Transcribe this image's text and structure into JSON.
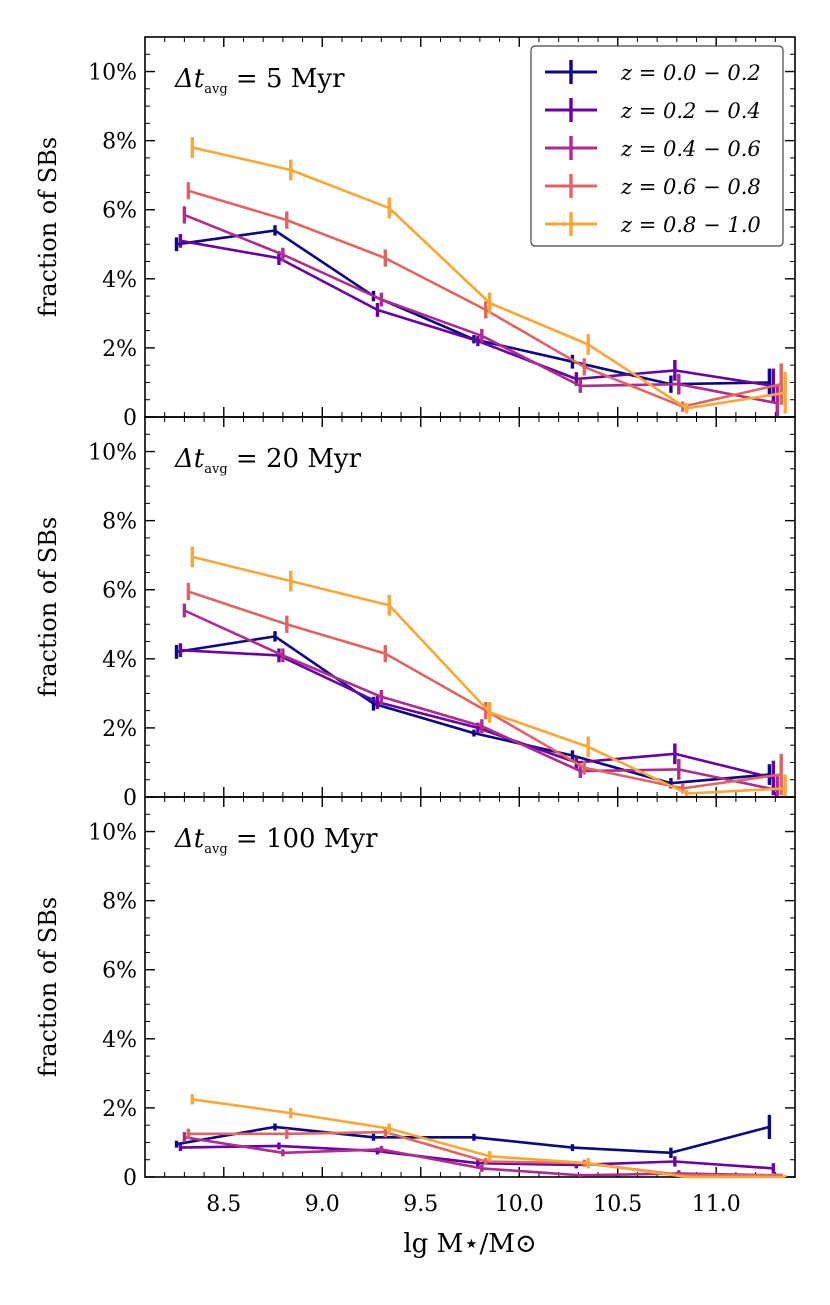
{
  "figure": {
    "xlabel": "lg M⋆/M⊙",
    "ylabel": "fraction of SBs"
  },
  "chart_data": [
    {
      "type": "line",
      "annotation": "Δt_avg = 5 Myr",
      "xlim": [
        8.1,
        11.4
      ],
      "ylim": [
        0,
        11
      ],
      "yticks": [
        0,
        2,
        4,
        6,
        8,
        10
      ],
      "ytick_labels": [
        "0",
        "2%",
        "4%",
        "6%",
        "8%",
        "10%"
      ],
      "xticks": [
        8.5,
        9.0,
        9.5,
        10.0,
        10.5,
        11.0
      ],
      "xtick_labels": [
        "8.5",
        "9.0",
        "9.5",
        "10.0",
        "10.5",
        "11.0"
      ],
      "show_xtick_labels": false,
      "legend": "top-right",
      "series": [
        {
          "name": "z = 0.0 − 0.2",
          "color": "#0d0887",
          "x": [
            8.26,
            8.76,
            9.26,
            9.77,
            10.27,
            10.77,
            11.27
          ],
          "y": [
            5.0,
            5.4,
            3.5,
            2.25,
            1.6,
            0.95,
            1.0
          ],
          "err": [
            0.2,
            0.15,
            0.15,
            0.12,
            0.2,
            0.25,
            0.4
          ]
        },
        {
          "name": "z = 0.2 − 0.4",
          "color": "#6a00a8",
          "x": [
            8.28,
            8.78,
            9.28,
            9.79,
            10.29,
            10.79,
            11.29
          ],
          "y": [
            5.1,
            4.6,
            3.1,
            2.2,
            1.1,
            1.35,
            0.9
          ],
          "err": [
            0.2,
            0.2,
            0.2,
            0.15,
            0.2,
            0.3,
            0.5
          ]
        },
        {
          "name": "z = 0.4 − 0.6",
          "color": "#b12a90",
          "x": [
            8.3,
            8.8,
            9.3,
            9.81,
            10.31,
            10.81,
            11.31
          ],
          "y": [
            5.85,
            4.7,
            3.4,
            2.35,
            0.9,
            0.95,
            0.4
          ],
          "err": [
            0.25,
            0.2,
            0.2,
            0.2,
            0.2,
            0.3,
            0.5
          ]
        },
        {
          "name": "z = 0.6 − 0.8",
          "color": "#e16462",
          "x": [
            8.32,
            8.82,
            9.32,
            9.83,
            10.33,
            10.83,
            11.33
          ],
          "y": [
            6.55,
            5.7,
            4.6,
            3.1,
            1.45,
            0.3,
            0.95
          ],
          "err": [
            0.25,
            0.25,
            0.25,
            0.25,
            0.25,
            0.15,
            0.6
          ]
        },
        {
          "name": "z = 0.8 − 1.0",
          "color": "#fca636",
          "x": [
            8.34,
            8.84,
            9.34,
            9.85,
            10.35,
            10.85,
            11.35
          ],
          "y": [
            7.8,
            7.15,
            6.05,
            3.3,
            2.1,
            0.25,
            0.7
          ],
          "err": [
            0.3,
            0.3,
            0.3,
            0.3,
            0.3,
            0.15,
            0.6
          ]
        }
      ]
    },
    {
      "type": "line",
      "annotation": "Δt_avg = 20 Myr",
      "xlim": [
        8.1,
        11.4
      ],
      "ylim": [
        0,
        11
      ],
      "yticks": [
        0,
        2,
        4,
        6,
        8,
        10
      ],
      "ytick_labels": [
        "0",
        "2%",
        "4%",
        "6%",
        "8%",
        "10%"
      ],
      "xticks": [
        8.5,
        9.0,
        9.5,
        10.0,
        10.5,
        11.0
      ],
      "xtick_labels": [
        "8.5",
        "9.0",
        "9.5",
        "10.0",
        "10.5",
        "11.0"
      ],
      "show_xtick_labels": false,
      "series": [
        {
          "name": "z = 0.0 − 0.2",
          "color": "#0d0887",
          "x": [
            8.26,
            8.76,
            9.26,
            9.77,
            10.27,
            10.77,
            11.27
          ],
          "y": [
            4.2,
            4.65,
            2.7,
            1.85,
            1.2,
            0.4,
            0.65
          ],
          "err": [
            0.2,
            0.15,
            0.2,
            0.1,
            0.15,
            0.15,
            0.3
          ]
        },
        {
          "name": "z = 0.2 − 0.4",
          "color": "#6a00a8",
          "x": [
            8.28,
            8.78,
            9.28,
            9.79,
            10.29,
            10.79,
            11.29
          ],
          "y": [
            4.25,
            4.1,
            2.75,
            2.0,
            1.0,
            1.25,
            0.55
          ],
          "err": [
            0.2,
            0.2,
            0.2,
            0.15,
            0.2,
            0.3,
            0.5
          ]
        },
        {
          "name": "z = 0.4 − 0.6",
          "color": "#b12a90",
          "x": [
            8.3,
            8.8,
            9.3,
            9.81,
            10.31,
            10.81,
            11.31
          ],
          "y": [
            5.4,
            4.1,
            2.9,
            2.05,
            0.75,
            0.8,
            0.2
          ],
          "err": [
            0.2,
            0.2,
            0.2,
            0.2,
            0.2,
            0.3,
            0.4
          ]
        },
        {
          "name": "z = 0.6 − 0.8",
          "color": "#e16462",
          "x": [
            8.32,
            8.82,
            9.32,
            9.83,
            10.33,
            10.83,
            11.33
          ],
          "y": [
            5.95,
            5.0,
            4.15,
            2.5,
            0.85,
            0.25,
            0.65
          ],
          "err": [
            0.25,
            0.25,
            0.25,
            0.25,
            0.2,
            0.15,
            0.6
          ]
        },
        {
          "name": "z = 0.8 − 1.0",
          "color": "#fca636",
          "x": [
            8.34,
            8.84,
            9.34,
            9.85,
            10.35,
            10.85,
            11.35
          ],
          "y": [
            6.95,
            6.25,
            5.55,
            2.45,
            1.45,
            0.1,
            0.25
          ],
          "err": [
            0.3,
            0.3,
            0.3,
            0.3,
            0.3,
            0.1,
            0.4
          ]
        }
      ]
    },
    {
      "type": "line",
      "annotation": "Δt_avg = 100 Myr",
      "xlim": [
        8.1,
        11.4
      ],
      "ylim": [
        0,
        11
      ],
      "yticks": [
        0,
        2,
        4,
        6,
        8,
        10
      ],
      "ytick_labels": [
        "0",
        "2%",
        "4%",
        "6%",
        "8%",
        "10%"
      ],
      "xticks": [
        8.5,
        9.0,
        9.5,
        10.0,
        10.5,
        11.0
      ],
      "xtick_labels": [
        "8.5",
        "9.0",
        "9.5",
        "10.0",
        "10.5",
        "11.0"
      ],
      "show_xtick_labels": true,
      "series": [
        {
          "name": "z = 0.0 − 0.2",
          "color": "#0d0887",
          "x": [
            8.26,
            8.76,
            9.26,
            9.77,
            10.27,
            10.77,
            11.27
          ],
          "y": [
            0.95,
            1.45,
            1.15,
            1.15,
            0.85,
            0.7,
            1.45
          ],
          "err": [
            0.1,
            0.1,
            0.1,
            0.1,
            0.1,
            0.15,
            0.35
          ]
        },
        {
          "name": "z = 0.2 − 0.4",
          "color": "#6a00a8",
          "x": [
            8.28,
            8.78,
            9.28,
            9.79,
            10.29,
            10.79,
            11.29
          ],
          "y": [
            0.85,
            0.9,
            0.75,
            0.4,
            0.35,
            0.45,
            0.25
          ],
          "err": [
            0.1,
            0.1,
            0.1,
            0.1,
            0.1,
            0.15,
            0.15
          ]
        },
        {
          "name": "z = 0.4 − 0.6",
          "color": "#b12a90",
          "x": [
            8.3,
            8.8,
            9.3,
            9.81,
            10.31,
            10.81,
            11.31
          ],
          "y": [
            1.15,
            0.7,
            0.8,
            0.25,
            0.05,
            0.1,
            0.05
          ],
          "err": [
            0.15,
            0.1,
            0.1,
            0.1,
            0.05,
            0.1,
            0.05
          ]
        },
        {
          "name": "z = 0.6 − 0.8",
          "color": "#e16462",
          "x": [
            8.32,
            8.82,
            9.32,
            9.83,
            10.33,
            10.83,
            11.33
          ],
          "y": [
            1.25,
            1.25,
            1.3,
            0.45,
            0.4,
            0.05,
            0.05
          ],
          "err": [
            0.15,
            0.15,
            0.15,
            0.1,
            0.1,
            0.05,
            0.05
          ]
        },
        {
          "name": "z = 0.8 − 1.0",
          "color": "#fca636",
          "x": [
            8.34,
            8.84,
            9.34,
            9.85,
            10.35,
            10.85,
            11.35
          ],
          "y": [
            2.25,
            1.85,
            1.4,
            0.6,
            0.4,
            0.0,
            0.0
          ],
          "err": [
            0.15,
            0.15,
            0.15,
            0.15,
            0.15,
            0.05,
            0.05
          ]
        }
      ]
    }
  ]
}
